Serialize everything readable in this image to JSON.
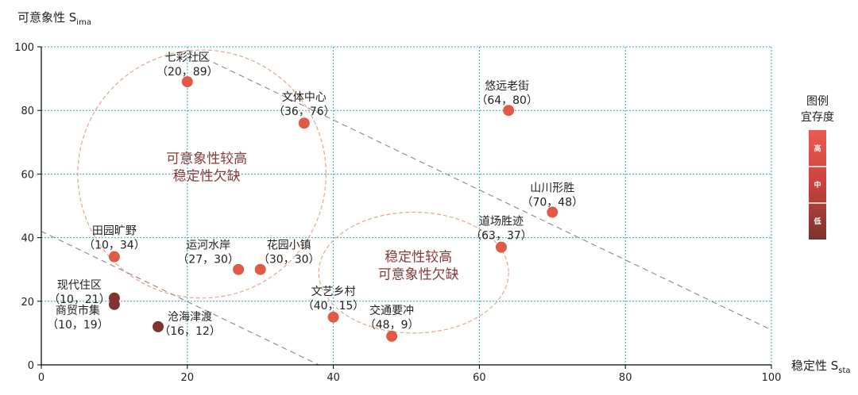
{
  "chart_data": {
    "type": "scatter",
    "ylabel": {
      "main": "可意象性 S",
      "sub": "ima"
    },
    "xlabel": {
      "main": "稳定性 S",
      "sub": "sta"
    },
    "xlim": [
      0,
      100
    ],
    "ylim": [
      0,
      100
    ],
    "xticks": [
      "0",
      "20",
      "40",
      "60",
      "80",
      "100"
    ],
    "yticks": [
      "0",
      "20",
      "40",
      "60",
      "80",
      "100"
    ],
    "grid": true,
    "points": [
      {
        "name": "七彩社区",
        "coord": "（20，89）",
        "x": 20,
        "y": 89,
        "level": "high"
      },
      {
        "name": "文体中心",
        "coord": "（36，76）",
        "x": 36,
        "y": 76,
        "level": "high"
      },
      {
        "name": "悠远老街",
        "coord": "（64，80）",
        "x": 64,
        "y": 80,
        "level": "high"
      },
      {
        "name": "山川形胜",
        "coord": "（70，48）",
        "x": 70,
        "y": 48,
        "level": "high"
      },
      {
        "name": "道场胜迹",
        "coord": "（63，37）",
        "x": 63,
        "y": 37,
        "level": "high"
      },
      {
        "name": "田园旷野",
        "coord": "（10，34）",
        "x": 10,
        "y": 34,
        "level": "high"
      },
      {
        "name": "运河水岸",
        "coord": "（27，30）",
        "x": 27,
        "y": 30,
        "level": "high"
      },
      {
        "name": "花园小镇",
        "coord": "（30，30）",
        "x": 30,
        "y": 30,
        "level": "high"
      },
      {
        "name": "文艺乡村",
        "coord": "（40，15）",
        "x": 40,
        "y": 15,
        "level": "high"
      },
      {
        "name": "交通要冲",
        "coord": "（48，9）",
        "x": 48,
        "y": 9,
        "level": "high"
      },
      {
        "name": "现代住区",
        "coord": "（10，21）",
        "x": 10,
        "y": 21,
        "level": "low"
      },
      {
        "name": "商贸市集",
        "coord": "（10，19）",
        "x": 10,
        "y": 19,
        "level": "low"
      },
      {
        "name": "沧海津渡",
        "coord": "（16，12）",
        "x": 16,
        "y": 12,
        "level": "low"
      }
    ],
    "regions": [
      {
        "line1": "可意象性较高",
        "line2": "稳定性欠缺",
        "cx": 22,
        "cy": 60,
        "rx": 17,
        "ry": 39
      },
      {
        "line1": "稳定性较高",
        "line2": "可意象性欠缺",
        "cx": 51,
        "cy": 29,
        "rx": 13,
        "ry": 19
      }
    ],
    "dividers": [
      {
        "x1": 20,
        "y1": 99,
        "x2": 100,
        "y2": 11
      },
      {
        "x1": 0,
        "y1": 42,
        "x2": 38,
        "y2": 0
      }
    ],
    "legend": {
      "title_line1": "图例",
      "title_line2": "宜存度",
      "placement": "right",
      "levels": [
        {
          "key": "high",
          "label": "高",
          "color": "#e9504a"
        },
        {
          "key": "mid",
          "label": "中",
          "color": "#c9433c"
        },
        {
          "key": "low",
          "label": "低",
          "color": "#7e3532"
        }
      ]
    },
    "colors": {
      "high": "#e05a45",
      "mid": "#c9433c",
      "low": "#7e3532",
      "grid": "#3aa6b4",
      "divider": "#888888",
      "region": "#e5a68a"
    }
  }
}
